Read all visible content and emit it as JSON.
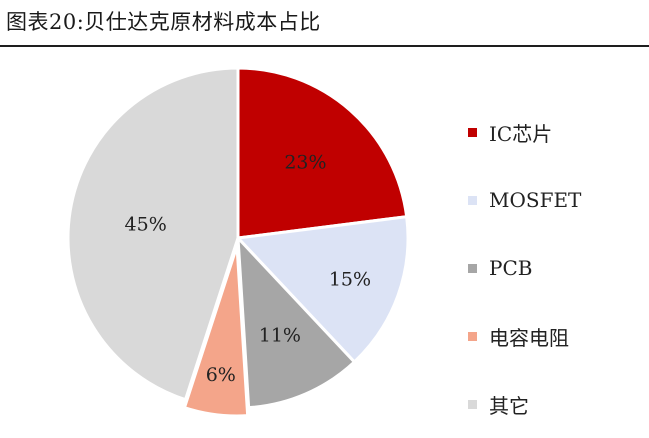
{
  "title": "图表20:贝仕达克原材料成本占比",
  "colors": {
    "ic": "#c00000",
    "mosfet": "#dce3f5",
    "pcb": "#a6a6a6",
    "resistor": "#f4a58a",
    "other": "#d9d9d9"
  },
  "chart_data": {
    "type": "pie",
    "title": "图表20:贝仕达克原材料成本占比",
    "categories": [
      "IC芯片",
      "MOSFET",
      "PCB",
      "电容电阻",
      "其它"
    ],
    "values": [
      23,
      15,
      11,
      6,
      45
    ],
    "labels": [
      "23%",
      "15%",
      "11%",
      "6%",
      "45%"
    ],
    "legend_position": "right"
  }
}
